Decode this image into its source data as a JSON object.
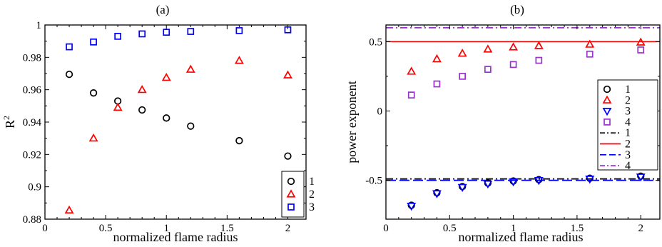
{
  "chart_data": [
    {
      "panel_label": "(a)",
      "type": "scatter",
      "xlabel": "normalized flame radius",
      "ylabel": "R",
      "ylabel_sup": "2",
      "xlim": [
        0,
        2.15
      ],
      "ylim": [
        0.88,
        1.0
      ],
      "xticks": [
        0,
        0.5,
        1,
        1.5,
        2
      ],
      "xtick_labels": [
        "0",
        "0.5",
        "1",
        "1.5",
        "2"
      ],
      "yticks": [
        0.88,
        0.9,
        0.92,
        0.94,
        0.96,
        0.98,
        1.0
      ],
      "ytick_labels": [
        "0.88",
        "0.9",
        "0.92",
        "0.94",
        "0.96",
        "0.98",
        "1"
      ],
      "legend_position": "bottom-right",
      "series": [
        {
          "name": "1",
          "marker": "circle",
          "color": "#000000",
          "x": [
            0.2,
            0.4,
            0.6,
            0.8,
            1.0,
            1.2,
            1.6,
            2.0
          ],
          "y": [
            0.9695,
            0.958,
            0.953,
            0.9475,
            0.9425,
            0.9375,
            0.9285,
            0.919
          ]
        },
        {
          "name": "2",
          "marker": "triangle-up",
          "color": "#ff0000",
          "x": [
            0.2,
            0.4,
            0.6,
            0.8,
            1.0,
            1.2,
            1.6,
            2.0
          ],
          "y": [
            0.8855,
            0.93,
            0.949,
            0.96,
            0.9675,
            0.9725,
            0.978,
            0.969
          ]
        },
        {
          "name": "3",
          "marker": "square",
          "color": "#0000ff",
          "x": [
            0.2,
            0.4,
            0.6,
            0.8,
            1.0,
            1.2,
            1.6,
            2.0
          ],
          "y": [
            0.9865,
            0.9895,
            0.993,
            0.9945,
            0.9955,
            0.996,
            0.9965,
            0.997
          ]
        }
      ]
    },
    {
      "panel_label": "(b)",
      "type": "scatter",
      "xlabel": "normalized flame radius",
      "ylabel": "power exponent",
      "xlim": [
        0,
        2.15
      ],
      "ylim": [
        -0.78,
        0.62
      ],
      "xticks": [
        0,
        0.5,
        1,
        1.5,
        2
      ],
      "xtick_labels": [
        "0",
        "0.5",
        "1",
        "1.5",
        "2"
      ],
      "yticks": [
        -0.5,
        0,
        0.5
      ],
      "ytick_labels": [
        "-0.5",
        "0",
        "0.5"
      ],
      "legend_position": "right",
      "series": [
        {
          "name": "1",
          "marker": "circle",
          "color": "#000000",
          "x": [
            0.2,
            0.4,
            0.6,
            0.8,
            1.0,
            1.2,
            1.6,
            2.0
          ],
          "y": [
            -0.68,
            -0.59,
            -0.545,
            -0.52,
            -0.505,
            -0.495,
            -0.485,
            -0.47
          ]
        },
        {
          "name": "2",
          "marker": "triangle-up",
          "color": "#ff0000",
          "x": [
            0.2,
            0.4,
            0.6,
            0.8,
            1.0,
            1.2,
            1.6,
            2.0
          ],
          "y": [
            0.285,
            0.375,
            0.415,
            0.445,
            0.46,
            0.47,
            0.48,
            0.495
          ]
        },
        {
          "name": "3",
          "marker": "triangle-down",
          "color": "#0000ff",
          "x": [
            0.2,
            0.4,
            0.6,
            0.8,
            1.0,
            1.2,
            1.6,
            2.0
          ],
          "y": [
            -0.685,
            -0.595,
            -0.55,
            -0.525,
            -0.51,
            -0.5,
            -0.49,
            -0.475
          ]
        },
        {
          "name": "4",
          "marker": "square",
          "color": "#9933cc",
          "x": [
            0.2,
            0.4,
            0.6,
            0.8,
            1.0,
            1.2,
            1.6,
            2.0
          ],
          "y": [
            0.115,
            0.195,
            0.25,
            0.3,
            0.335,
            0.365,
            0.41,
            0.44
          ]
        }
      ],
      "reference_lines": [
        {
          "name": "1",
          "y": -0.49,
          "color": "#000000",
          "dash": "dashdot"
        },
        {
          "name": "2",
          "y": 0.5,
          "color": "#ff0000",
          "dash": "solid"
        },
        {
          "name": "3",
          "y": -0.5,
          "color": "#0000ff",
          "dash": "dashed"
        },
        {
          "name": "4",
          "y": 0.6,
          "color": "#9933cc",
          "dash": "dashdot"
        }
      ]
    }
  ]
}
